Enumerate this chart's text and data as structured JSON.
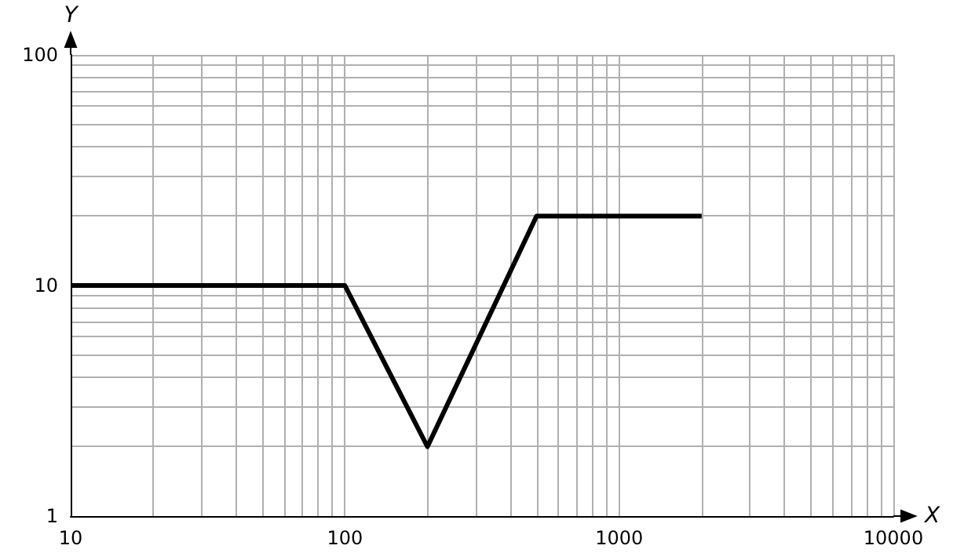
{
  "chart_data": {
    "type": "line",
    "xlabel": "X",
    "ylabel": "Y",
    "x": [
      10,
      100,
      200,
      500,
      2000
    ],
    "series": [
      {
        "color": "#000000",
        "values": [
          10,
          10,
          2,
          20,
          20
        ]
      }
    ],
    "xlim": [
      10,
      10000
    ],
    "ylim": [
      1,
      100
    ],
    "xticks": [
      10,
      100,
      1000,
      10000
    ],
    "yticks": [
      1,
      10,
      100
    ],
    "log": "xy",
    "grid": true,
    "marker": "none",
    "line_style": "solid"
  }
}
